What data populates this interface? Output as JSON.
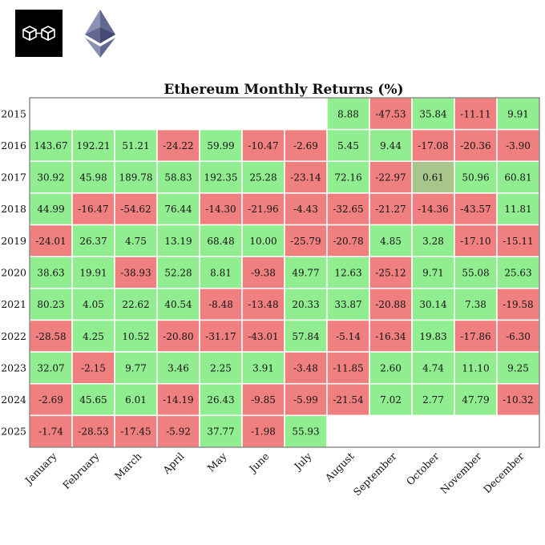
{
  "header": {
    "logo_icon": "linked-cubes-logo-icon",
    "eth_icon": "ethereum-logo-icon"
  },
  "chart_data": {
    "type": "heatmap",
    "title": "Ethereum Monthly Returns (%)",
    "xlabel": "",
    "ylabel": "",
    "years": [
      "2015",
      "2016",
      "2017",
      "2018",
      "2019",
      "2020",
      "2021",
      "2022",
      "2023",
      "2024",
      "2025"
    ],
    "months": [
      "January",
      "February",
      "March",
      "April",
      "May",
      "June",
      "July",
      "August",
      "September",
      "October",
      "November",
      "December"
    ],
    "values": [
      [
        null,
        null,
        null,
        null,
        null,
        null,
        null,
        8.88,
        -47.53,
        35.84,
        -11.11,
        9.91
      ],
      [
        143.67,
        192.21,
        51.21,
        -24.22,
        59.99,
        -10.47,
        -2.69,
        5.45,
        9.44,
        -17.08,
        -20.36,
        -3.9
      ],
      [
        30.92,
        45.98,
        189.78,
        58.83,
        192.35,
        25.28,
        -23.14,
        72.16,
        -22.97,
        0.61,
        50.96,
        60.81
      ],
      [
        44.99,
        -16.47,
        -54.62,
        76.44,
        -14.3,
        -21.96,
        -4.43,
        -32.65,
        -21.27,
        -14.36,
        -43.57,
        11.81
      ],
      [
        -24.01,
        26.37,
        4.75,
        13.19,
        68.48,
        10.0,
        -25.79,
        -20.78,
        4.85,
        3.28,
        -17.1,
        -15.11
      ],
      [
        38.63,
        19.91,
        -38.93,
        52.28,
        8.81,
        -9.38,
        49.77,
        12.63,
        -25.12,
        9.71,
        55.08,
        25.63
      ],
      [
        80.23,
        4.05,
        22.62,
        40.54,
        -8.48,
        -13.48,
        20.33,
        33.87,
        -20.88,
        30.14,
        7.38,
        -19.58
      ],
      [
        -28.58,
        4.25,
        10.52,
        -20.8,
        -31.17,
        -43.01,
        57.84,
        -5.14,
        -16.34,
        19.83,
        -17.86,
        -6.3
      ],
      [
        32.07,
        -2.15,
        9.77,
        3.46,
        2.25,
        3.91,
        -3.48,
        -11.85,
        2.6,
        4.74,
        11.1,
        9.25
      ],
      [
        -2.69,
        45.65,
        6.01,
        -14.19,
        26.43,
        -9.85,
        -5.99,
        -21.54,
        7.02,
        2.77,
        47.79,
        -10.32
      ],
      [
        -1.74,
        -28.53,
        -17.45,
        -5.92,
        37.77,
        -1.98,
        55.93,
        null,
        null,
        null,
        null,
        null
      ]
    ],
    "colors": {
      "positive": "#90ee90",
      "negative": "#f08080",
      "neutral": "#a8c58b",
      "grid_line": "#ffffff",
      "frame": "#555555"
    },
    "neutral_threshold": 1,
    "decimals": 2,
    "grid": true,
    "legend": "none"
  }
}
